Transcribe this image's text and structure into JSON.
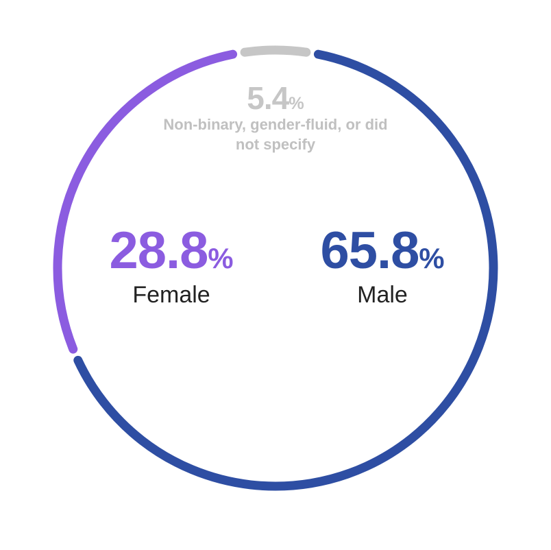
{
  "chart_data": {
    "type": "donut",
    "categories": [
      "Male",
      "Female",
      "Non-binary, gender-fluid, or did not specify"
    ],
    "values": [
      65.8,
      28.8,
      5.4
    ],
    "value_labels": [
      "65.8%",
      "28.8%",
      "5.4%"
    ],
    "colors": [
      "#2e4ea3",
      "#8b5ce0",
      "#c6c6c6"
    ]
  }
}
